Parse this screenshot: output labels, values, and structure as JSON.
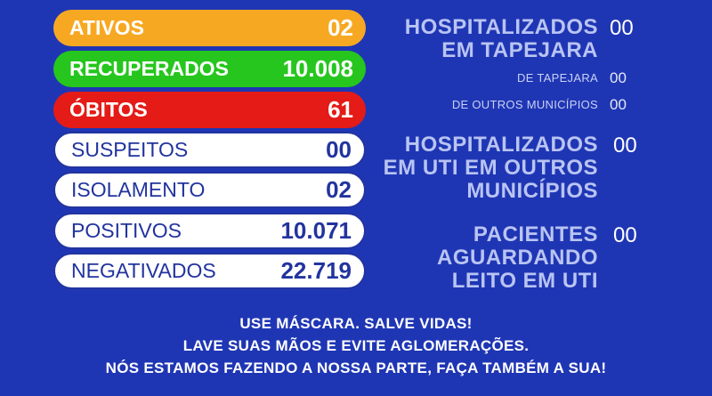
{
  "colors": {
    "background": "#1f36b4",
    "ativos": "#f7a822",
    "recuperados": "#26c61e",
    "obitos": "#e41b17",
    "white_pill_text": "#22349e"
  },
  "stats": [
    {
      "label": "ATIVOS",
      "value": "02",
      "style": "colored",
      "color": "#f7a822"
    },
    {
      "label": "RECUPERADOS",
      "value": "10.008",
      "style": "colored",
      "color": "#26c61e"
    },
    {
      "label": "ÓBITOS",
      "value": "61",
      "style": "colored",
      "color": "#e41b17"
    },
    {
      "label": "SUSPEITOS",
      "value": "00",
      "style": "white"
    },
    {
      "label": "ISOLAMENTO",
      "value": "02",
      "style": "white"
    },
    {
      "label": "POSITIVOS",
      "value": "10.071",
      "style": "white"
    },
    {
      "label": "NEGATIVADOS",
      "value": "22.719",
      "style": "white"
    }
  ],
  "hospitalizados": {
    "line1": "HOSPITALIZADOS",
    "line2": "EM TAPEJARA",
    "value": "00",
    "de_tapejara_label": "DE TAPEJARA",
    "de_tapejara_value": "00",
    "outros_label": "DE OUTROS MUNICÍPIOS",
    "outros_value": "00"
  },
  "uti": {
    "line1": "HOSPITALIZADOS",
    "line2": "EM UTI EM OUTROS",
    "line3": "MUNICÍPIOS",
    "value": "00"
  },
  "aguardando": {
    "line1": "PACIENTES",
    "line2": "AGUARDANDO",
    "line3": "LEITO EM UTI",
    "value": "00"
  },
  "messages": [
    "USE MÁSCARA. SALVE VIDAS!",
    "LAVE SUAS MÃOS E EVITE AGLOMERAÇÕES.",
    "NÓS ESTAMOS FAZENDO A NOSSA PARTE, FAÇA TAMBÉM A SUA!"
  ]
}
